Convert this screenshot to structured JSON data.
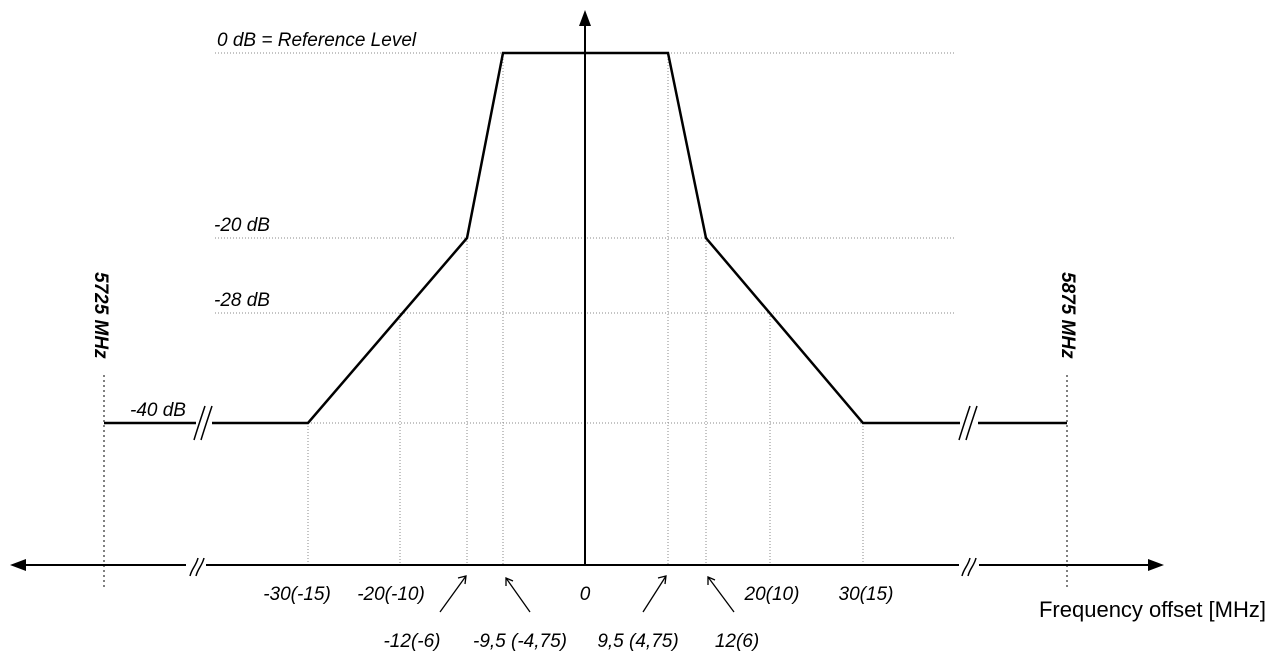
{
  "diagram": {
    "level_labels": {
      "reference": "0 dB = Reference Level",
      "minus20": "-20 dB",
      "minus28": "-28 dB",
      "minus40": "-40 dB"
    },
    "band_edges": {
      "lower": "5725 MHz",
      "upper": "5875 MHz"
    },
    "x_axis": {
      "title": "Frequency offset [MHz]",
      "zero": "0",
      "ticks_upper_row": {
        "m30": "-30(-15)",
        "m20": "-20(-10)",
        "p20": "20(10)",
        "p30": "30(15)"
      },
      "ticks_lower_row": {
        "m12": "-12(-6)",
        "m95": "-9,5 (-4,75)",
        "p95": "9,5 (4,75)",
        "p12": "12(6)"
      }
    },
    "mask_points_offset_mhz_db": [
      [
        -30,
        -40
      ],
      [
        -12,
        -20
      ],
      [
        -9.5,
        0
      ],
      [
        9.5,
        0
      ],
      [
        12,
        -20
      ],
      [
        30,
        -40
      ]
    ],
    "colors": {
      "line": "#000000",
      "guide": "#888888"
    }
  }
}
